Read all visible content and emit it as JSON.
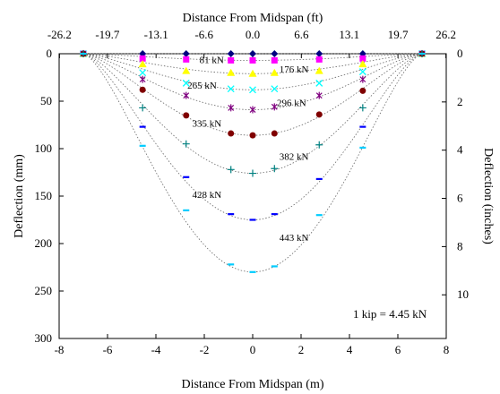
{
  "chart_data": {
    "type": "scatter",
    "title": "",
    "xlabel_bottom": "Distance From Midspan (m)",
    "xlabel_top": "Distance From Midspan (ft)",
    "ylabel_left": "Deflection (mm)",
    "ylabel_right": "Deflection (inches)",
    "xlim": [
      -8,
      8
    ],
    "ylim_mm": [
      0,
      300
    ],
    "y_inverted": true,
    "x_ticks_m": [
      "-8",
      "-6",
      "-4",
      "-2",
      "0",
      "2",
      "4",
      "6",
      "8"
    ],
    "x_ticks_ft": [
      "-26.2",
      "-19.7",
      "-13.1",
      "-6.6",
      "0.0",
      "6.6",
      "13.1",
      "19.7",
      "26.2"
    ],
    "y_ticks_mm": [
      "0",
      "50",
      "100",
      "150",
      "200",
      "250",
      "300"
    ],
    "y_ticks_in": [
      "0",
      "2",
      "4",
      "6",
      "8",
      "10"
    ],
    "note": "1 kip = 4.45 kN",
    "x": [
      -7.0,
      -4.55,
      -2.75,
      -0.9,
      0.0,
      0.9,
      2.75,
      4.55,
      7.0
    ],
    "series": [
      {
        "label": "81 kN",
        "marker": "diamond",
        "color": "#000080",
        "values": [
          0,
          0,
          0,
          0,
          0,
          0,
          0,
          0,
          0
        ]
      },
      {
        "label": "176 kN",
        "marker": "square",
        "color": "#ff00ff",
        "values": [
          0,
          5,
          6,
          7,
          7,
          7,
          6,
          5,
          0
        ]
      },
      {
        "label": "",
        "marker": "triangle",
        "color": "#ffff00",
        "values": [
          0,
          11,
          18,
          20,
          21,
          20,
          18,
          11,
          0
        ]
      },
      {
        "label": "265 kN",
        "marker": "x",
        "color": "#00ffff",
        "values": [
          0,
          20,
          31,
          37,
          38,
          37,
          31,
          19,
          0
        ]
      },
      {
        "label": "",
        "marker": "star",
        "color": "#800080",
        "values": [
          0,
          27,
          44,
          57,
          59,
          56,
          44,
          27,
          0
        ]
      },
      {
        "label": "296 kN",
        "marker": "circle",
        "color": "#800000",
        "values": [
          0,
          38,
          65,
          84,
          86,
          84,
          64,
          39,
          0
        ]
      },
      {
        "label": "335 kN",
        "marker": "plus",
        "color": "#008080",
        "values": [
          0,
          57,
          95,
          122,
          126,
          121,
          96,
          57,
          0
        ]
      },
      {
        "label": "382 kN",
        "marker": "dash",
        "color": "#0000ff",
        "values": [
          0,
          77,
          130,
          169,
          175,
          169,
          132,
          77,
          0
        ]
      },
      {
        "label": "428 kN",
        "marker": "dash",
        "color": "#00ccff",
        "values": [
          0,
          97,
          165,
          222,
          230,
          224,
          170,
          99,
          0
        ]
      },
      {
        "label": "443 kN",
        "marker": "none",
        "color": "#000000",
        "values": []
      }
    ],
    "curve_label_placements": [
      {
        "label": "81 kN",
        "x": -2.2,
        "y": 10
      },
      {
        "label": "176 kN",
        "x": 1.1,
        "y": 20
      },
      {
        "label": "265 kN",
        "x": -2.7,
        "y": 37
      },
      {
        "label": "296 kN",
        "x": 1.0,
        "y": 55
      },
      {
        "label": "335 kN",
        "x": -2.5,
        "y": 77
      },
      {
        "label": "382 kN",
        "x": 1.1,
        "y": 112
      },
      {
        "label": "428 kN",
        "x": -2.5,
        "y": 152
      },
      {
        "label": "443 kN",
        "x": 1.1,
        "y": 197
      }
    ]
  }
}
